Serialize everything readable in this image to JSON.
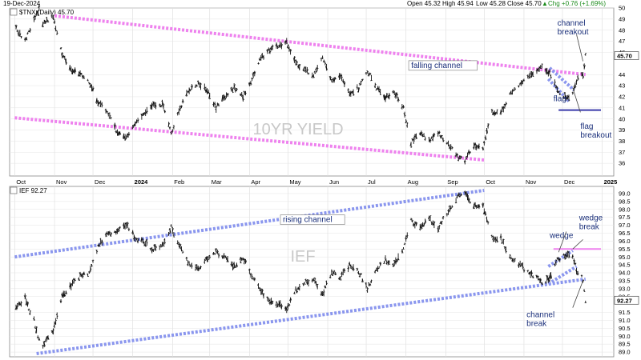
{
  "header": {
    "date": "19-Dec-2024",
    "open": "Open 45.32",
    "high": "High 45.94",
    "low": "Low 45.28",
    "close": "Close 45.70",
    "chg": "Chg +0.76 (+1.69%)",
    "chg_arrow": "▲"
  },
  "chart_data": [
    {
      "type": "ohlc",
      "title": "$TNX (Daily) 45.70",
      "watermark": "10YR YIELD",
      "last_value": 45.7,
      "last_label": "45.70",
      "ylim": [
        35,
        50
      ],
      "yticks": [
        {
          "v": 50,
          "t": "50"
        },
        {
          "v": 49,
          "t": "49"
        },
        {
          "v": 48,
          "t": "48"
        },
        {
          "v": 47,
          "t": "47"
        },
        {
          "v": 46,
          "t": "46"
        },
        {
          "v": 44,
          "t": "44"
        },
        {
          "v": 43,
          "t": "43"
        },
        {
          "v": 42,
          "t": "42"
        },
        {
          "v": 41,
          "t": "41"
        },
        {
          "v": 40,
          "t": "40"
        },
        {
          "v": 39,
          "t": "39"
        },
        {
          "v": 38,
          "t": "38"
        },
        {
          "v": 37,
          "t": "37"
        },
        {
          "v": 36,
          "t": "36"
        }
      ],
      "series": [
        [
          "2023-10-02",
          48.2
        ],
        [
          "2023-10-09",
          47.0
        ],
        [
          "2023-10-16",
          49.0
        ],
        [
          "2023-10-20",
          49.9
        ],
        [
          "2023-10-23",
          48.6
        ],
        [
          "2023-10-31",
          49.3
        ],
        [
          "2023-11-07",
          45.8
        ],
        [
          "2023-11-14",
          44.3
        ],
        [
          "2023-11-21",
          44.0
        ],
        [
          "2023-11-28",
          43.3
        ],
        [
          "2023-12-05",
          41.5
        ],
        [
          "2023-12-12",
          40.7
        ],
        [
          "2023-12-19",
          39.0
        ],
        [
          "2023-12-27",
          38.3
        ],
        [
          "2024-01-03",
          39.5
        ],
        [
          "2024-01-10",
          40.4
        ],
        [
          "2024-01-17",
          41.3
        ],
        [
          "2024-01-24",
          41.3
        ],
        [
          "2024-01-31",
          38.8
        ],
        [
          "2024-02-07",
          41.0
        ],
        [
          "2024-02-14",
          42.7
        ],
        [
          "2024-02-21",
          43.2
        ],
        [
          "2024-02-28",
          42.6
        ],
        [
          "2024-03-06",
          41.0
        ],
        [
          "2024-03-13",
          42.0
        ],
        [
          "2024-03-20",
          42.8
        ],
        [
          "2024-03-27",
          42.0
        ],
        [
          "2024-04-03",
          43.6
        ],
        [
          "2024-04-10",
          45.5
        ],
        [
          "2024-04-17",
          46.3
        ],
        [
          "2024-04-24",
          46.5
        ],
        [
          "2024-04-30",
          47.0
        ],
        [
          "2024-05-07",
          45.0
        ],
        [
          "2024-05-14",
          44.4
        ],
        [
          "2024-05-21",
          44.0
        ],
        [
          "2024-05-28",
          45.5
        ],
        [
          "2024-06-04",
          43.3
        ],
        [
          "2024-06-11",
          43.8
        ],
        [
          "2024-06-18",
          42.3
        ],
        [
          "2024-06-25",
          42.8
        ],
        [
          "2024-07-02",
          44.4
        ],
        [
          "2024-07-09",
          42.8
        ],
        [
          "2024-07-16",
          42.0
        ],
        [
          "2024-07-23",
          42.4
        ],
        [
          "2024-07-30",
          41.0
        ],
        [
          "2024-08-05",
          37.8
        ],
        [
          "2024-08-12",
          38.8
        ],
        [
          "2024-08-19",
          38.0
        ],
        [
          "2024-08-26",
          38.8
        ],
        [
          "2024-09-03",
          37.7
        ],
        [
          "2024-09-10",
          36.6
        ],
        [
          "2024-09-16",
          36.3
        ],
        [
          "2024-09-23",
          37.5
        ],
        [
          "2024-09-30",
          37.5
        ],
        [
          "2024-10-07",
          40.6
        ],
        [
          "2024-10-14",
          40.5
        ],
        [
          "2024-10-21",
          42.3
        ],
        [
          "2024-10-28",
          42.9
        ],
        [
          "2024-11-04",
          43.7
        ],
        [
          "2024-11-11",
          44.2
        ],
        [
          "2024-11-15",
          44.8
        ],
        [
          "2024-11-22",
          44.0
        ],
        [
          "2024-11-27",
          42.6
        ],
        [
          "2024-12-04",
          41.9
        ],
        [
          "2024-12-09",
          42.2
        ],
        [
          "2024-12-13",
          43.9
        ],
        [
          "2024-12-17",
          44.0
        ],
        [
          "2024-12-19",
          45.7
        ]
      ],
      "xticks": [
        {
          "d": "2023-10-01",
          "t": "Oct",
          "bold": false
        },
        {
          "d": "2023-11-01",
          "t": "Nov",
          "bold": false
        },
        {
          "d": "2023-12-01",
          "t": "Dec",
          "bold": false
        },
        {
          "d": "2024-01-01",
          "t": "2024",
          "bold": true
        },
        {
          "d": "2024-02-01",
          "t": "Feb",
          "bold": false
        },
        {
          "d": "2024-03-01",
          "t": "Mar",
          "bold": false
        },
        {
          "d": "2024-04-01",
          "t": "Apr",
          "bold": false
        },
        {
          "d": "2024-05-01",
          "t": "May",
          "bold": false
        },
        {
          "d": "2024-06-01",
          "t": "Jun",
          "bold": false
        },
        {
          "d": "2024-07-01",
          "t": "Jul",
          "bold": false
        },
        {
          "d": "2024-08-01",
          "t": "Aug",
          "bold": false
        },
        {
          "d": "2024-09-01",
          "t": "Sep",
          "bold": false
        },
        {
          "d": "2024-10-01",
          "t": "Oct",
          "bold": false
        },
        {
          "d": "2024-11-01",
          "t": "Nov",
          "bold": false
        },
        {
          "d": "2024-12-01",
          "t": "Dec",
          "bold": false
        },
        {
          "d": "2025-01-01",
          "t": "2025",
          "bold": true
        }
      ],
      "trendlines": [
        {
          "name": "falling-channel-upper",
          "color": "#ee82ee",
          "points": [
            [
              "2023-11-01",
              49.3
            ],
            [
              "2024-12-19",
              44.0
            ]
          ]
        },
        {
          "name": "falling-channel-lower",
          "color": "#ee82ee",
          "points": [
            [
              "2023-10-01",
              40.1
            ],
            [
              "2024-10-01",
              36.3
            ]
          ]
        },
        {
          "name": "flag-upper",
          "color": "#8a96ee",
          "points": [
            [
              "2024-11-21",
              44.6
            ],
            [
              "2024-12-10",
              42.6
            ]
          ]
        },
        {
          "name": "flag-lower",
          "color": "#8a96ee",
          "points": [
            [
              "2024-11-20",
              43.6
            ],
            [
              "2024-12-06",
              41.6
            ]
          ]
        },
        {
          "name": "flag-level",
          "color": "#3a3aaa",
          "points": [
            [
              "2024-11-28",
              40.8
            ],
            [
              "2024-12-31",
              40.8
            ]
          ]
        }
      ],
      "annotations": [
        {
          "name": "falling-channel-label",
          "text": "falling channel",
          "lines": [
            "falling channel"
          ],
          "color": "#1a2f7a",
          "boxed": true,
          "d": "2024-08-05",
          "v": 44.6
        },
        {
          "name": "channel-breakout-label",
          "text": "channel breakout",
          "lines": [
            "channel",
            "breakout"
          ],
          "color": "#1a2f7a",
          "boxed": false,
          "d": "2024-11-27",
          "v": 48.4
        },
        {
          "name": "flag-label",
          "text": "flag",
          "lines": [
            "flag"
          ],
          "color": "#1a2f7a",
          "boxed": false,
          "d": "2024-11-24",
          "v": 41.6
        },
        {
          "name": "flag-breakout-label",
          "text": "flag breakout",
          "lines": [
            "flag",
            "breakout"
          ],
          "color": "#1a2f7a",
          "boxed": false,
          "d": "2024-12-15",
          "v": 39.1
        }
      ]
    },
    {
      "type": "ohlc",
      "title": "IEF 92.27",
      "watermark": "IEF",
      "last_value": 92.27,
      "last_label": "92.27",
      "ylim": [
        88.7,
        99.4
      ],
      "yticks": [
        {
          "v": 99.0,
          "t": "99.0"
        },
        {
          "v": 98.5,
          "t": "98.5"
        },
        {
          "v": 98.0,
          "t": "98.0"
        },
        {
          "v": 97.5,
          "t": "97.5"
        },
        {
          "v": 97.0,
          "t": "97.0"
        },
        {
          "v": 96.5,
          "t": "96.5"
        },
        {
          "v": 96.0,
          "t": "96.0"
        },
        {
          "v": 95.5,
          "t": "95.5"
        },
        {
          "v": 95.0,
          "t": "95.0"
        },
        {
          "v": 94.5,
          "t": "94.5"
        },
        {
          "v": 94.0,
          "t": "94.0"
        },
        {
          "v": 93.5,
          "t": "93.5"
        },
        {
          "v": 93.0,
          "t": "93.0"
        },
        {
          "v": 92.5,
          "t": "92.5"
        },
        {
          "v": 91.5,
          "t": "91.5"
        },
        {
          "v": 91.0,
          "t": "91.0"
        },
        {
          "v": 90.5,
          "t": "90.5"
        },
        {
          "v": 90.0,
          "t": "90.0"
        },
        {
          "v": 89.5,
          "t": "89.5"
        },
        {
          "v": 89.0,
          "t": "89.0"
        }
      ],
      "series": [
        [
          "2023-10-02",
          91.8
        ],
        [
          "2023-10-09",
          92.4
        ],
        [
          "2023-10-16",
          91.0
        ],
        [
          "2023-10-20",
          89.7
        ],
        [
          "2023-10-23",
          89.4
        ],
        [
          "2023-10-31",
          90.4
        ],
        [
          "2023-11-07",
          92.5
        ],
        [
          "2023-11-14",
          93.2
        ],
        [
          "2023-11-21",
          93.8
        ],
        [
          "2023-11-28",
          94.0
        ],
        [
          "2023-12-05",
          95.6
        ],
        [
          "2023-12-12",
          96.5
        ],
        [
          "2023-12-19",
          96.6
        ],
        [
          "2023-12-27",
          97.0
        ],
        [
          "2024-01-03",
          96.2
        ],
        [
          "2024-01-10",
          95.9
        ],
        [
          "2024-01-17",
          95.5
        ],
        [
          "2024-01-24",
          95.7
        ],
        [
          "2024-01-31",
          96.9
        ],
        [
          "2024-02-07",
          95.6
        ],
        [
          "2024-02-14",
          94.6
        ],
        [
          "2024-02-21",
          94.3
        ],
        [
          "2024-02-28",
          94.9
        ],
        [
          "2024-03-06",
          95.3
        ],
        [
          "2024-03-13",
          94.9
        ],
        [
          "2024-03-20",
          94.4
        ],
        [
          "2024-03-27",
          94.9
        ],
        [
          "2024-04-03",
          93.8
        ],
        [
          "2024-04-10",
          92.9
        ],
        [
          "2024-04-17",
          92.1
        ],
        [
          "2024-04-24",
          92.0
        ],
        [
          "2024-04-30",
          91.7
        ],
        [
          "2024-05-07",
          92.9
        ],
        [
          "2024-05-14",
          93.4
        ],
        [
          "2024-05-21",
          93.6
        ],
        [
          "2024-05-28",
          92.6
        ],
        [
          "2024-06-04",
          94.1
        ],
        [
          "2024-06-11",
          93.7
        ],
        [
          "2024-06-18",
          94.5
        ],
        [
          "2024-06-25",
          94.1
        ],
        [
          "2024-07-02",
          93.0
        ],
        [
          "2024-07-09",
          94.2
        ],
        [
          "2024-07-16",
          94.8
        ],
        [
          "2024-07-23",
          94.5
        ],
        [
          "2024-07-30",
          95.6
        ],
        [
          "2024-08-05",
          97.3
        ],
        [
          "2024-08-12",
          96.8
        ],
        [
          "2024-08-19",
          97.4
        ],
        [
          "2024-08-26",
          96.8
        ],
        [
          "2024-09-03",
          97.9
        ],
        [
          "2024-09-10",
          98.8
        ],
        [
          "2024-09-16",
          99.0
        ],
        [
          "2024-09-23",
          98.2
        ],
        [
          "2024-09-30",
          98.3
        ],
        [
          "2024-10-07",
          96.2
        ],
        [
          "2024-10-14",
          96.2
        ],
        [
          "2024-10-21",
          95.0
        ],
        [
          "2024-10-28",
          94.6
        ],
        [
          "2024-11-04",
          94.0
        ],
        [
          "2024-11-11",
          93.7
        ],
        [
          "2024-11-15",
          93.3
        ],
        [
          "2024-11-22",
          93.7
        ],
        [
          "2024-11-27",
          94.8
        ],
        [
          "2024-12-04",
          95.2
        ],
        [
          "2024-12-09",
          95.1
        ],
        [
          "2024-12-13",
          93.9
        ],
        [
          "2024-12-17",
          93.6
        ],
        [
          "2024-12-19",
          92.27
        ]
      ],
      "xticks": [],
      "trendlines": [
        {
          "name": "rising-channel-upper",
          "color": "#8a96ee",
          "points": [
            [
              "2023-10-01",
              95.0
            ],
            [
              "2024-10-01",
              99.2
            ]
          ]
        },
        {
          "name": "rising-channel-lower",
          "color": "#8a96ee",
          "points": [
            [
              "2023-10-18",
              88.9
            ],
            [
              "2024-12-19",
              93.6
            ]
          ]
        },
        {
          "name": "wedge-upper",
          "color": "#8a96ee",
          "points": [
            [
              "2024-11-20",
              94.4
            ],
            [
              "2024-12-09",
              95.4
            ]
          ]
        },
        {
          "name": "wedge-lower",
          "color": "#8a96ee",
          "points": [
            [
              "2024-11-20",
              93.3
            ],
            [
              "2024-12-12",
              94.4
            ]
          ]
        },
        {
          "name": "wedge-break-level",
          "color": "#ee82ee",
          "points": [
            [
              "2024-11-24",
              95.5
            ],
            [
              "2024-12-31",
              95.5
            ]
          ]
        }
      ],
      "annotations": [
        {
          "name": "rising-channel-label",
          "text": "rising channel",
          "lines": [
            "rising channel"
          ],
          "color": "#1a2f7a",
          "boxed": true,
          "d": "2024-04-27",
          "v": 97.2
        },
        {
          "name": "wedge-label",
          "text": "wedge",
          "lines": [
            "wedge"
          ],
          "color": "#1a2f7a",
          "boxed": false,
          "d": "2024-11-21",
          "v": 96.2
        },
        {
          "name": "wedge-break-label",
          "text": "wedge break",
          "lines": [
            "wedge",
            "break"
          ],
          "color": "#1a2f7a",
          "boxed": false,
          "d": "2024-12-14",
          "v": 97.3
        },
        {
          "name": "channel-break-label",
          "text": "channel break",
          "lines": [
            "channel",
            "break"
          ],
          "color": "#1a2f7a",
          "boxed": false,
          "d": "2024-11-03",
          "v": 91.2
        }
      ]
    }
  ]
}
